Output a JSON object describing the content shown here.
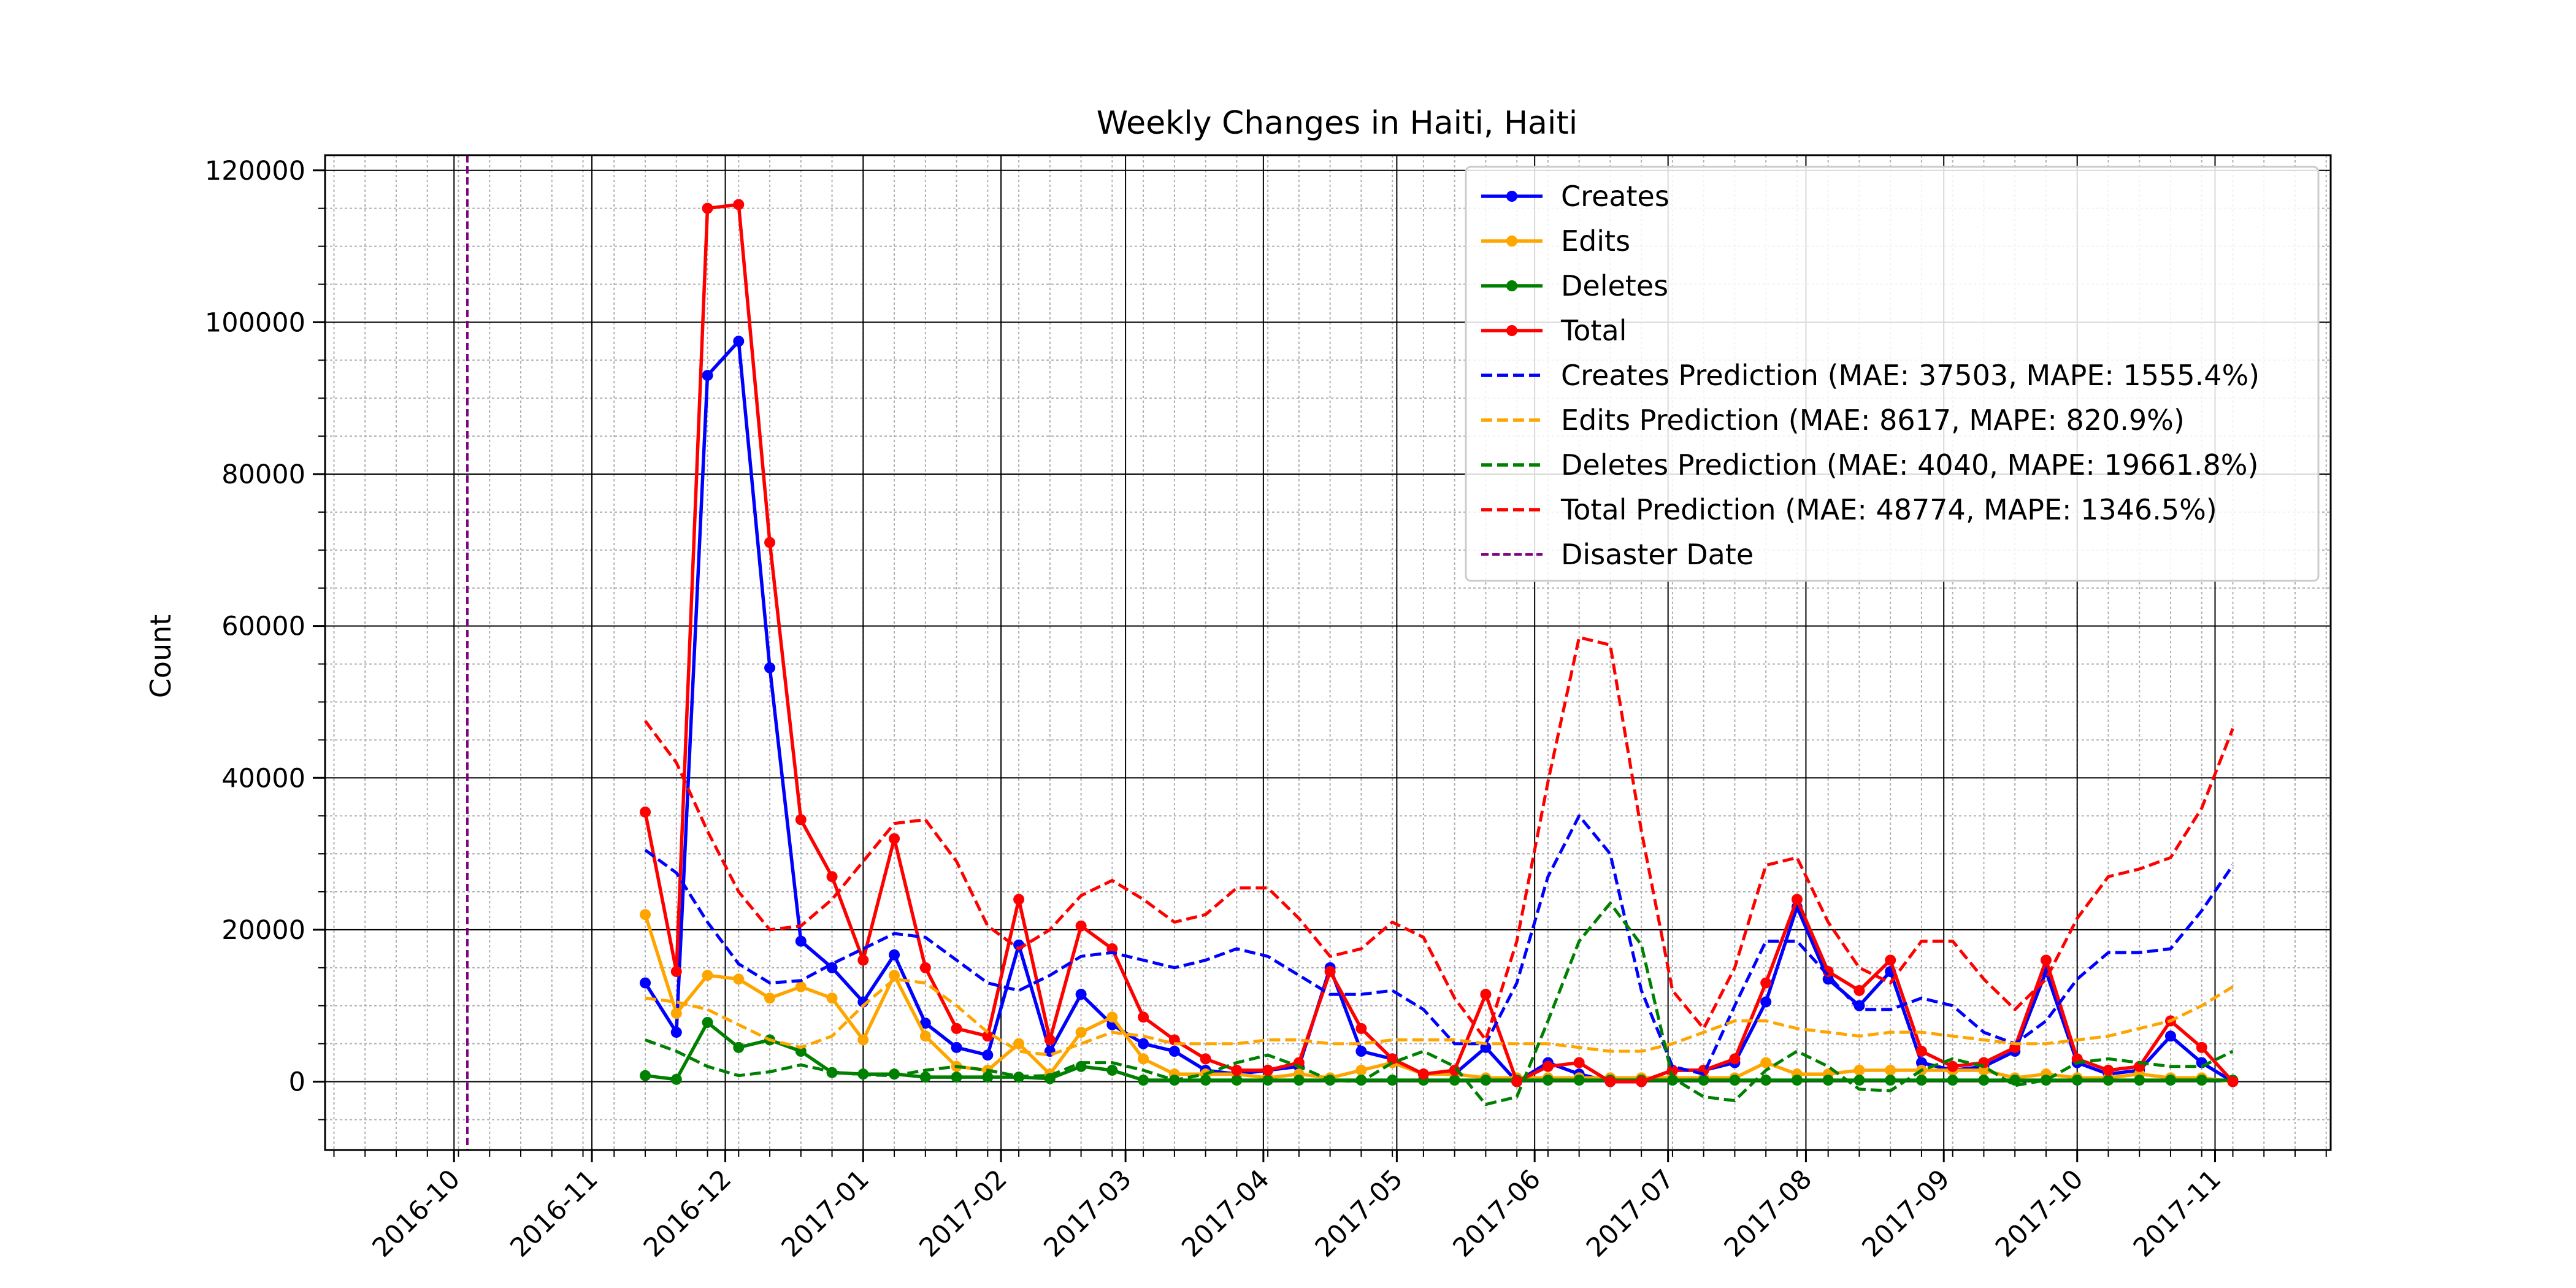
{
  "chart_data": {
    "type": "line",
    "title": "Weekly Changes in Haiti, Haiti",
    "xlabel": "",
    "ylabel": "Count",
    "x_axis_type": "date",
    "xlim": [
      "2016-09-02",
      "2017-11-27"
    ],
    "ylim": [
      -9000,
      122000
    ],
    "x_ticks": [
      "2016-10",
      "2016-11",
      "2016-12",
      "2017-01",
      "2017-02",
      "2017-03",
      "2017-04",
      "2017-05",
      "2017-06",
      "2017-07",
      "2017-08",
      "2017-09",
      "2017-10",
      "2017-11"
    ],
    "y_ticks": [
      "0",
      "20000",
      "40000",
      "60000",
      "80000",
      "100000",
      "120000"
    ],
    "grid": true,
    "legend_position": "top-right",
    "disaster_date": "2016-10-04",
    "dates": [
      "2016-11-13",
      "2016-11-20",
      "2016-11-27",
      "2016-12-04",
      "2016-12-11",
      "2016-12-18",
      "2016-12-25",
      "2017-01-01",
      "2017-01-08",
      "2017-01-15",
      "2017-01-22",
      "2017-01-29",
      "2017-02-05",
      "2017-02-12",
      "2017-02-19",
      "2017-02-26",
      "2017-03-05",
      "2017-03-12",
      "2017-03-19",
      "2017-03-26",
      "2017-04-02",
      "2017-04-09",
      "2017-04-16",
      "2017-04-23",
      "2017-04-30",
      "2017-05-07",
      "2017-05-14",
      "2017-05-21",
      "2017-05-28",
      "2017-06-04",
      "2017-06-11",
      "2017-06-18",
      "2017-06-25",
      "2017-07-02",
      "2017-07-09",
      "2017-07-16",
      "2017-07-23",
      "2017-07-30",
      "2017-08-06",
      "2017-08-13",
      "2017-08-20",
      "2017-08-27",
      "2017-09-03",
      "2017-09-10",
      "2017-09-17",
      "2017-09-24",
      "2017-10-01",
      "2017-10-08",
      "2017-10-15",
      "2017-10-22",
      "2017-10-29",
      "2017-11-05"
    ],
    "series": [
      {
        "name": "Creates",
        "color": "#0000ff",
        "style": "solid",
        "markers": true,
        "values": [
          13000,
          6500,
          93000,
          97500,
          54500,
          18500,
          15000,
          10500,
          16700,
          7700,
          4500,
          3500,
          18000,
          4000,
          11500,
          7500,
          5000,
          4000,
          1500,
          1000,
          1500,
          2000,
          15000,
          4000,
          3000,
          1000,
          1000,
          4500,
          0,
          2500,
          1000,
          0,
          0,
          1500,
          1500,
          2500,
          10500,
          23000,
          13500,
          10000,
          14500,
          2500,
          1500,
          2000,
          4000,
          14500,
          2500,
          1000,
          1500,
          6000,
          2500,
          0
        ]
      },
      {
        "name": "Edits",
        "color": "#ffa500",
        "style": "solid",
        "markers": true,
        "values": [
          22000,
          9000,
          14000,
          13500,
          11000,
          12500,
          11000,
          5500,
          14000,
          6000,
          2000,
          1500,
          5000,
          1000,
          6500,
          8500,
          3000,
          1000,
          1000,
          1000,
          500,
          1000,
          500,
          1500,
          2500,
          1000,
          1000,
          500,
          500,
          500,
          500,
          500,
          500,
          500,
          500,
          500,
          2500,
          1000,
          1000,
          1500,
          1500,
          1500,
          1500,
          1500,
          500,
          1000,
          500,
          500,
          1000,
          500,
          500,
          0
        ]
      },
      {
        "name": "Deletes",
        "color": "#008000",
        "style": "solid",
        "markers": true,
        "values": [
          800,
          300,
          7800,
          4500,
          5500,
          4000,
          1200,
          1000,
          1000,
          600,
          600,
          600,
          600,
          400,
          2000,
          1500,
          200,
          200,
          200,
          200,
          200,
          200,
          200,
          200,
          200,
          200,
          200,
          200,
          200,
          200,
          200,
          200,
          200,
          200,
          200,
          200,
          200,
          200,
          200,
          200,
          200,
          200,
          200,
          200,
          200,
          200,
          200,
          200,
          200,
          200,
          200,
          200
        ]
      },
      {
        "name": "Total",
        "color": "#ff0000",
        "style": "solid",
        "markers": true,
        "values": [
          35500,
          14500,
          115000,
          115500,
          71000,
          34500,
          27000,
          16000,
          32000,
          15000,
          7000,
          6000,
          24000,
          5500,
          20500,
          17500,
          8500,
          5500,
          3000,
          1500,
          1500,
          2500,
          14500,
          7000,
          3000,
          1000,
          1500,
          11500,
          0,
          2000,
          2500,
          0,
          0,
          1500,
          1500,
          3000,
          13000,
          24000,
          14500,
          12000,
          16000,
          4000,
          2000,
          2500,
          4500,
          16000,
          3000,
          1500,
          2000,
          8000,
          4500,
          0
        ]
      },
      {
        "name": "Creates Prediction (MAE: 37503, MAPE: 1555.4%)",
        "color": "#0000ff",
        "style": "dashed",
        "markers": false,
        "values": [
          30500,
          27500,
          21000,
          15500,
          13000,
          13300,
          15500,
          17500,
          19500,
          19000,
          16000,
          13000,
          12000,
          14000,
          16500,
          17000,
          16000,
          15000,
          16000,
          17500,
          16500,
          14000,
          11500,
          11500,
          12000,
          9500,
          5000,
          5000,
          13000,
          27000,
          35000,
          30000,
          12000,
          2000,
          1000,
          10000,
          18500,
          18500,
          14000,
          9500,
          9500,
          11000,
          10000,
          6500,
          5000,
          8000,
          13500,
          17000,
          17000,
          17500,
          22500,
          28500
        ]
      },
      {
        "name": "Edits Prediction (MAE: 8617, MAPE: 820.9%)",
        "color": "#ffa500",
        "style": "dashed",
        "markers": false,
        "values": [
          11000,
          10500,
          9500,
          7500,
          5500,
          4500,
          6000,
          10000,
          13500,
          13000,
          10000,
          6500,
          4000,
          3500,
          5000,
          6500,
          6000,
          5000,
          5000,
          5000,
          5500,
          5500,
          5000,
          5000,
          5500,
          5500,
          5500,
          5000,
          5000,
          5000,
          4500,
          4000,
          4000,
          5000,
          6500,
          8000,
          8000,
          7000,
          6500,
          6000,
          6500,
          6500,
          6000,
          5500,
          5000,
          5000,
          5500,
          6000,
          7000,
          8000,
          10000,
          12500
        ]
      },
      {
        "name": "Deletes Prediction (MAE: 4040, MAPE: 19661.8%)",
        "color": "#008000",
        "style": "dashed",
        "markers": false,
        "values": [
          5500,
          4000,
          2000,
          800,
          1300,
          2200,
          1300,
          900,
          800,
          1500,
          2000,
          1500,
          700,
          800,
          2500,
          2500,
          1500,
          200,
          1000,
          2500,
          3500,
          2000,
          200,
          0,
          2500,
          4000,
          2000,
          -3000,
          -2000,
          8000,
          18500,
          23500,
          18000,
          500,
          -2000,
          -2500,
          1500,
          4000,
          2000,
          -1000,
          -1200,
          1500,
          3000,
          2000,
          -500,
          200,
          2500,
          3000,
          2500,
          2000,
          2000,
          4000
        ]
      },
      {
        "name": "Total Prediction (MAE: 48774, MAPE: 1346.5%)",
        "color": "#ff0000",
        "style": "dashed",
        "markers": false,
        "values": [
          47500,
          42000,
          33000,
          25000,
          20000,
          20500,
          24000,
          29000,
          34000,
          34500,
          29000,
          20500,
          17500,
          20000,
          24500,
          26500,
          24000,
          21000,
          22000,
          25500,
          25500,
          21500,
          16500,
          17500,
          21000,
          19000,
          11000,
          5500,
          18500,
          39500,
          58500,
          57500,
          33000,
          12000,
          7000,
          15000,
          28500,
          29500,
          21000,
          15000,
          13000,
          18500,
          18500,
          13500,
          9500,
          13500,
          21500,
          27000,
          28000,
          29500,
          36000,
          46500
        ]
      }
    ],
    "legend_entries": [
      "Creates",
      "Edits",
      "Deletes",
      "Total",
      "Creates Prediction (MAE: 37503, MAPE: 1555.4%)",
      "Edits Prediction (MAE: 8617, MAPE: 820.9%)",
      "Deletes Prediction (MAE: 4040, MAPE: 19661.8%)",
      "Total Prediction (MAE: 48774, MAPE: 1346.5%)",
      "Disaster Date"
    ],
    "disaster_line": {
      "name": "Disaster Date",
      "color": "#800080",
      "style": "dashed"
    }
  }
}
